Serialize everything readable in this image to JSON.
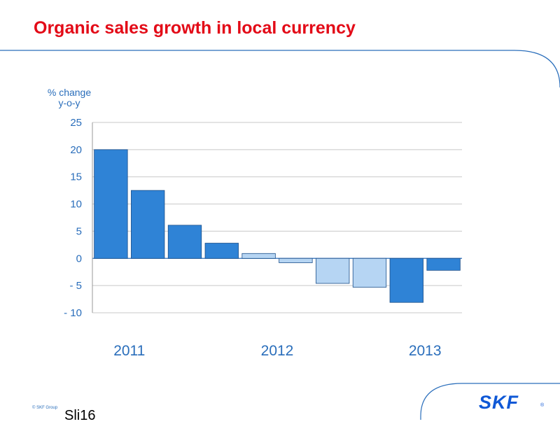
{
  "slide": {
    "title": "Organic sales growth in local currency",
    "copyright": "© SKF Group",
    "slide_number": "Sli16",
    "logo_text": "SKF",
    "logo_mark": "®"
  },
  "colors": {
    "title": "#e30a17",
    "accent": "#2a6ebb",
    "bar_dark": "#2f83d6",
    "bar_light": "#b6d5f3"
  },
  "chart_data": {
    "type": "bar",
    "ylabel_lines": [
      "% change",
      "y-o-y"
    ],
    "yticks": [
      25,
      20,
      15,
      10,
      5,
      0,
      -5,
      -10
    ],
    "ytick_labels": [
      "25",
      "20",
      "15",
      "10",
      "5",
      "0",
      "- 5",
      "- 10"
    ],
    "ylim": [
      -10,
      25
    ],
    "grid": true,
    "values": [
      20,
      12.5,
      6.1,
      2.8,
      0.9,
      -0.8,
      -4.6,
      -5.3,
      -8.1,
      -2.2
    ],
    "shade": [
      "dark",
      "dark",
      "dark",
      "dark",
      "light",
      "light",
      "light",
      "light",
      "dark",
      "dark"
    ],
    "year_labels": [
      {
        "text": "2011",
        "bar_index": 0.5
      },
      {
        "text": "2012",
        "bar_index": 4.5
      },
      {
        "text": "2013",
        "bar_index": 8.5
      }
    ]
  }
}
